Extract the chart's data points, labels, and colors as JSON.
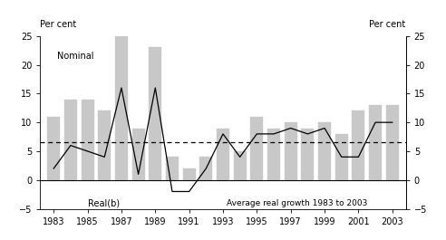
{
  "years": [
    1983,
    1984,
    1985,
    1986,
    1987,
    1988,
    1989,
    1990,
    1991,
    1992,
    1993,
    1994,
    1995,
    1996,
    1997,
    1998,
    1999,
    2000,
    2001,
    2002,
    2003
  ],
  "nominal_bars": [
    11,
    14,
    14,
    12,
    25,
    9,
    23,
    4,
    2,
    4,
    9,
    5,
    11,
    9,
    10,
    9,
    10,
    8,
    12,
    13,
    13
  ],
  "real_line": [
    2,
    6,
    5,
    4,
    16,
    1,
    16,
    -2,
    -2,
    2,
    8,
    4,
    8,
    8,
    9,
    8,
    9,
    4,
    4,
    10,
    10
  ],
  "avg_real_growth": 6.5,
  "bar_color": "#c8c8c8",
  "line_color": "#000000",
  "avg_line_color": "#000000",
  "ylim": [
    -5,
    25
  ],
  "yticks": [
    -5,
    0,
    5,
    10,
    15,
    20,
    25
  ],
  "ylabel_left": "Per cent",
  "ylabel_right": "Per cent",
  "nominal_label": "Nominal",
  "real_label": "Real(b)",
  "avg_label": "Average real growth 1983 to 2003",
  "xtick_years": [
    1983,
    1985,
    1987,
    1989,
    1991,
    1993,
    1995,
    1997,
    1999,
    2001,
    2003
  ]
}
